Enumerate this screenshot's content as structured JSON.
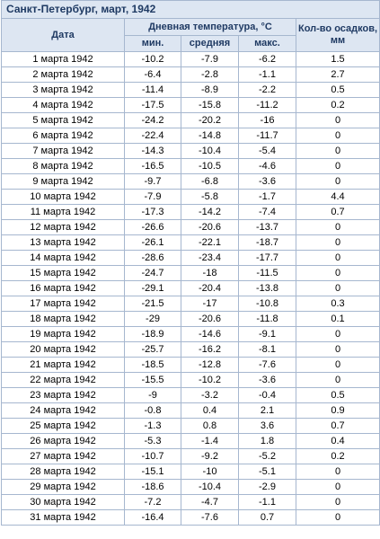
{
  "title": "Санкт-Петербург, март, 1942",
  "headers": {
    "date": "Дата",
    "temperature_group": "Дневная температура, °C",
    "min": "мин.",
    "avg": "средняя",
    "max": "макс.",
    "precipitation": "Кол-во осадков, мм"
  },
  "rows": [
    {
      "date": "1 марта 1942",
      "min": "-10.2",
      "avg": "-7.9",
      "max": "-6.2",
      "prec": "1.5"
    },
    {
      "date": "2 марта 1942",
      "min": "-6.4",
      "avg": "-2.8",
      "max": "-1.1",
      "prec": "2.7"
    },
    {
      "date": "3 марта 1942",
      "min": "-11.4",
      "avg": "-8.9",
      "max": "-2.2",
      "prec": "0.5"
    },
    {
      "date": "4 марта 1942",
      "min": "-17.5",
      "avg": "-15.8",
      "max": "-11.2",
      "prec": "0.2"
    },
    {
      "date": "5 марта 1942",
      "min": "-24.2",
      "avg": "-20.2",
      "max": "-16",
      "prec": "0"
    },
    {
      "date": "6 марта 1942",
      "min": "-22.4",
      "avg": "-14.8",
      "max": "-11.7",
      "prec": "0"
    },
    {
      "date": "7 марта 1942",
      "min": "-14.3",
      "avg": "-10.4",
      "max": "-5.4",
      "prec": "0"
    },
    {
      "date": "8 марта 1942",
      "min": "-16.5",
      "avg": "-10.5",
      "max": "-4.6",
      "prec": "0"
    },
    {
      "date": "9 марта 1942",
      "min": "-9.7",
      "avg": "-6.8",
      "max": "-3.6",
      "prec": "0"
    },
    {
      "date": "10 марта 1942",
      "min": "-7.9",
      "avg": "-5.8",
      "max": "-1.7",
      "prec": "4.4"
    },
    {
      "date": "11 марта 1942",
      "min": "-17.3",
      "avg": "-14.2",
      "max": "-7.4",
      "prec": "0.7"
    },
    {
      "date": "12 марта 1942",
      "min": "-26.6",
      "avg": "-20.6",
      "max": "-13.7",
      "prec": "0"
    },
    {
      "date": "13 марта 1942",
      "min": "-26.1",
      "avg": "-22.1",
      "max": "-18.7",
      "prec": "0"
    },
    {
      "date": "14 марта 1942",
      "min": "-28.6",
      "avg": "-23.4",
      "max": "-17.7",
      "prec": "0"
    },
    {
      "date": "15 марта 1942",
      "min": "-24.7",
      "avg": "-18",
      "max": "-11.5",
      "prec": "0"
    },
    {
      "date": "16 марта 1942",
      "min": "-29.1",
      "avg": "-20.4",
      "max": "-13.8",
      "prec": "0"
    },
    {
      "date": "17 марта 1942",
      "min": "-21.5",
      "avg": "-17",
      "max": "-10.8",
      "prec": "0.3"
    },
    {
      "date": "18 марта 1942",
      "min": "-29",
      "avg": "-20.6",
      "max": "-11.8",
      "prec": "0.1"
    },
    {
      "date": "19 марта 1942",
      "min": "-18.9",
      "avg": "-14.6",
      "max": "-9.1",
      "prec": "0"
    },
    {
      "date": "20 марта 1942",
      "min": "-25.7",
      "avg": "-16.2",
      "max": "-8.1",
      "prec": "0"
    },
    {
      "date": "21 марта 1942",
      "min": "-18.5",
      "avg": "-12.8",
      "max": "-7.6",
      "prec": "0"
    },
    {
      "date": "22 марта 1942",
      "min": "-15.5",
      "avg": "-10.2",
      "max": "-3.6",
      "prec": "0"
    },
    {
      "date": "23 марта 1942",
      "min": "-9",
      "avg": "-3.2",
      "max": "-0.4",
      "prec": "0.5"
    },
    {
      "date": "24 марта 1942",
      "min": "-0.8",
      "avg": "0.4",
      "max": "2.1",
      "prec": "0.9"
    },
    {
      "date": "25 марта 1942",
      "min": "-1.3",
      "avg": "0.8",
      "max": "3.6",
      "prec": "0.7"
    },
    {
      "date": "26 марта 1942",
      "min": "-5.3",
      "avg": "-1.4",
      "max": "1.8",
      "prec": "0.4"
    },
    {
      "date": "27 марта 1942",
      "min": "-10.7",
      "avg": "-9.2",
      "max": "-5.2",
      "prec": "0.2"
    },
    {
      "date": "28 марта 1942",
      "min": "-15.1",
      "avg": "-10",
      "max": "-5.1",
      "prec": "0"
    },
    {
      "date": "29 марта 1942",
      "min": "-18.6",
      "avg": "-10.4",
      "max": "-2.9",
      "prec": "0"
    },
    {
      "date": "30 марта 1942",
      "min": "-7.2",
      "avg": "-4.7",
      "max": "-1.1",
      "prec": "0"
    },
    {
      "date": "31 марта 1942",
      "min": "-16.4",
      "avg": "-7.6",
      "max": "0.7",
      "prec": "0"
    }
  ]
}
